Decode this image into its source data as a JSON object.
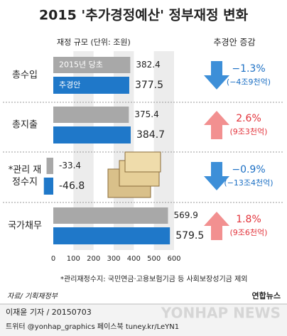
{
  "chart_data": {
    "type": "bar",
    "orientation": "horizontal",
    "title": "2015 '추가경정예산' 정부재정 변화",
    "x_label": "재정 규모 (단위: 조원)",
    "categories": [
      "총수입",
      "총지출",
      "*관리 재정수지",
      "국가채무"
    ],
    "series": [
      {
        "name": "2015년 당초",
        "color": "#a8a8a8",
        "values": [
          382.4,
          375.4,
          -33.4,
          569.9
        ]
      },
      {
        "name": "추경안",
        "color": "#1f78c9",
        "values": [
          377.5,
          384.7,
          -46.8,
          579.5
        ]
      }
    ],
    "xlim": [
      0,
      600
    ],
    "xticks": [
      0,
      100,
      200,
      300,
      400,
      500,
      600
    ],
    "change_header": "추경안 증감",
    "up_color": "#f29090",
    "down_color": "#3d8fd8",
    "up_text_color": "#e2323a",
    "down_text_color": "#1b6fc4",
    "changes": [
      {
        "percent": "−1.3%",
        "amount": "(−4조9천억)",
        "direction": "down"
      },
      {
        "percent": "2.6%",
        "amount": "(9조3천억)",
        "direction": "up"
      },
      {
        "percent": "−0.9%",
        "amount": "(−13조4천억)",
        "direction": "down"
      },
      {
        "percent": "1.8%",
        "amount": "(9조6천억)",
        "direction": "up"
      }
    ],
    "footnote": "*관리재정수지: 국민연금·고용보험기금 등 사회보장성기금 제외",
    "source": "자료/ 기획재정부"
  },
  "credits": {
    "logo": "연합뉴스",
    "watermark": "YONHAP NEWS",
    "byline": "이재윤 기자 / 20150703",
    "social": "트위터 @yonhap_graphics  페이스북 tuney.kr/LeYN1"
  }
}
